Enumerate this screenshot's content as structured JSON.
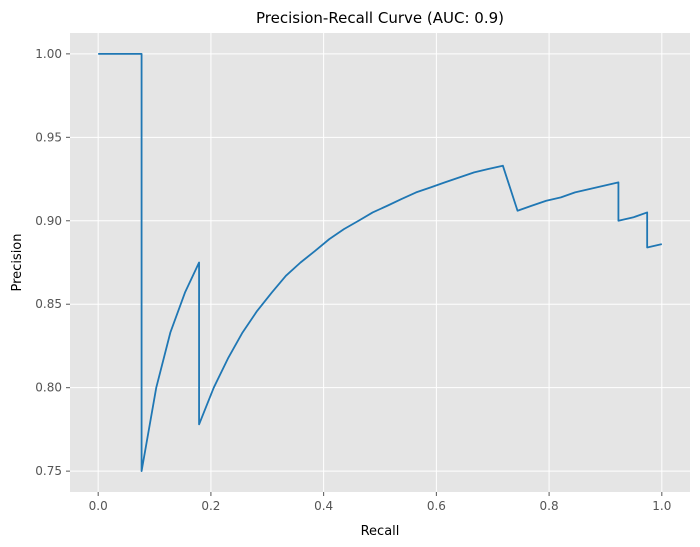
{
  "chart_data": {
    "type": "line",
    "title": "Precision-Recall Curve (AUC: 0.9)",
    "xlabel": "Recall",
    "ylabel": "Precision",
    "xlim": [
      -0.05,
      1.05
    ],
    "ylim": [
      0.7375,
      1.0125
    ],
    "xticks": [
      0.0,
      0.2,
      0.4,
      0.6,
      0.8,
      1.0
    ],
    "xtick_labels": [
      "0.0",
      "0.2",
      "0.4",
      "0.6",
      "0.8",
      "1.0"
    ],
    "yticks": [
      0.75,
      0.8,
      0.85,
      0.9,
      0.95,
      1.0
    ],
    "ytick_labels": [
      "0.75",
      "0.80",
      "0.85",
      "0.90",
      "0.95",
      "1.00"
    ],
    "grid": true,
    "style": "ggplot",
    "colors": {
      "background": "#e5e5e5",
      "grid": "#ffffff",
      "line": "#1f77b4"
    },
    "series": [
      {
        "x": [
          0.0,
          0.077,
          0.077,
          0.103,
          0.128,
          0.154,
          0.179,
          0.179,
          0.205,
          0.231,
          0.256,
          0.282,
          0.308,
          0.333,
          0.359,
          0.385,
          0.41,
          0.436,
          0.462,
          0.487,
          0.513,
          0.538,
          0.564,
          0.59,
          0.615,
          0.641,
          0.667,
          0.692,
          0.718,
          0.744,
          0.769,
          0.795,
          0.821,
          0.846,
          0.872,
          0.897,
          0.923,
          0.923,
          0.949,
          0.974,
          0.974,
          1.0
        ],
        "y": [
          1.0,
          1.0,
          0.75,
          0.8,
          0.833,
          0.857,
          0.875,
          0.778,
          0.8,
          0.818,
          0.833,
          0.846,
          0.857,
          0.867,
          0.875,
          0.882,
          0.889,
          0.895,
          0.9,
          0.905,
          0.909,
          0.913,
          0.917,
          0.92,
          0.923,
          0.926,
          0.929,
          0.931,
          0.933,
          0.906,
          0.909,
          0.912,
          0.914,
          0.917,
          0.919,
          0.921,
          0.923,
          0.9,
          0.902,
          0.905,
          0.884,
          0.886
        ]
      }
    ]
  }
}
